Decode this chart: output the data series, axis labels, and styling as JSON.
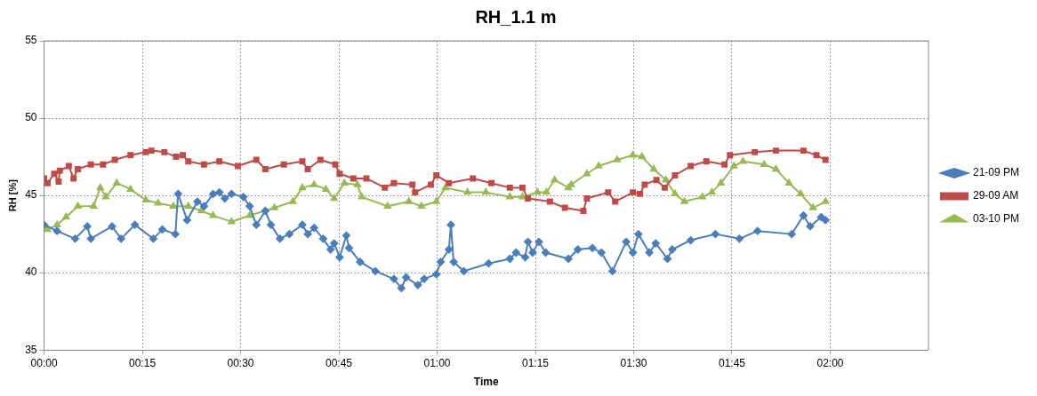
{
  "chart_data": {
    "type": "line",
    "title": "RH_1.1 m",
    "xlabel": "Time",
    "ylabel": "RH [%]",
    "xlim": [
      0,
      2.25
    ],
    "xticks": [
      {
        "value": 0,
        "label": "00:00"
      },
      {
        "value": 0.25,
        "label": "00:15"
      },
      {
        "value": 0.5,
        "label": "00:30"
      },
      {
        "value": 0.75,
        "label": "00:45"
      },
      {
        "value": 1,
        "label": "01:00"
      },
      {
        "value": 1.25,
        "label": "01:15"
      },
      {
        "value": 1.5,
        "label": "01:30"
      },
      {
        "value": 1.75,
        "label": "01:45"
      },
      {
        "value": 2,
        "label": "02:00"
      }
    ],
    "ylim": [
      35,
      55
    ],
    "yticks": [
      35,
      40,
      45,
      50,
      55
    ],
    "grid": true,
    "legend": "right",
    "line_style": "solid",
    "series": [
      {
        "name": "21-09 PM",
        "color": "#4a7ebb",
        "marker": "diamond",
        "x": [
          0,
          0.033,
          0.079,
          0.11,
          0.119,
          0.173,
          0.196,
          0.231,
          0.278,
          0.301,
          0.334,
          0.341,
          0.364,
          0.39,
          0.407,
          0.43,
          0.446,
          0.46,
          0.477,
          0.507,
          0.523,
          0.54,
          0.563,
          0.577,
          0.6,
          0.624,
          0.657,
          0.671,
          0.687,
          0.71,
          0.729,
          0.738,
          0.752,
          0.769,
          0.776,
          0.804,
          0.843,
          0.89,
          0.909,
          0.921,
          0.951,
          0.967,
          0.998,
          1.009,
          1.03,
          1.035,
          1.042,
          1.068,
          1.131,
          1.185,
          1.201,
          1.224,
          1.231,
          1.243,
          1.259,
          1.276,
          1.334,
          1.358,
          1.395,
          1.418,
          1.446,
          1.481,
          1.498,
          1.512,
          1.54,
          1.556,
          1.586,
          1.598,
          1.645,
          1.708,
          1.769,
          1.815,
          1.902,
          1.932,
          1.949,
          1.977,
          1.988
        ],
        "values": [
          43.1,
          42.7,
          42.2,
          43.0,
          42.2,
          43.0,
          42.2,
          43.1,
          42.2,
          42.8,
          42.5,
          45.1,
          43.4,
          44.6,
          44.3,
          45.1,
          45.2,
          44.8,
          45.1,
          44.9,
          44.3,
          43.1,
          44.0,
          43.1,
          42.2,
          42.5,
          43.1,
          42.5,
          42.9,
          42.2,
          41.5,
          41.9,
          41.0,
          42.4,
          41.6,
          40.7,
          40.1,
          39.6,
          39.0,
          39.7,
          39.2,
          39.6,
          39.9,
          40.7,
          41.5,
          43.1,
          40.7,
          40.1,
          40.6,
          40.9,
          41.3,
          41.0,
          42.0,
          41.3,
          42.0,
          41.3,
          40.9,
          41.5,
          41.6,
          41.3,
          40.1,
          42.0,
          41.3,
          42.5,
          41.3,
          41.9,
          40.9,
          41.5,
          42.1,
          42.5,
          42.2,
          42.7,
          42.5,
          43.7,
          43.0,
          43.6,
          43.4
        ]
      },
      {
        "name": "29-09 AM",
        "color": "#be4b48",
        "marker": "square",
        "x": [
          0,
          0.009,
          0.026,
          0.037,
          0.04,
          0.063,
          0.075,
          0.086,
          0.119,
          0.15,
          0.18,
          0.22,
          0.259,
          0.273,
          0.306,
          0.336,
          0.353,
          0.367,
          0.407,
          0.446,
          0.493,
          0.54,
          0.563,
          0.61,
          0.657,
          0.671,
          0.703,
          0.741,
          0.752,
          0.787,
          0.82,
          0.867,
          0.89,
          0.937,
          0.944,
          0.984,
          0.998,
          1.03,
          1.091,
          1.138,
          1.185,
          1.217,
          1.231,
          1.287,
          1.325,
          1.372,
          1.381,
          1.435,
          1.453,
          1.498,
          1.516,
          1.528,
          1.558,
          1.579,
          1.605,
          1.645,
          1.685,
          1.731,
          1.745,
          1.808,
          1.862,
          1.932,
          1.965,
          1.988
        ],
        "values": [
          46.1,
          45.8,
          46.4,
          45.9,
          46.6,
          46.9,
          46.1,
          46.7,
          47.0,
          47.0,
          47.3,
          47.6,
          47.8,
          47.9,
          47.8,
          47.5,
          47.6,
          47.2,
          47.0,
          47.2,
          46.9,
          47.3,
          46.7,
          47.0,
          47.2,
          46.7,
          47.3,
          47.0,
          46.4,
          46.1,
          46.1,
          45.5,
          45.8,
          45.7,
          45.2,
          45.7,
          46.3,
          45.8,
          46.1,
          45.8,
          45.5,
          45.5,
          44.8,
          44.6,
          44.2,
          44.0,
          44.8,
          45.2,
          44.6,
          45.2,
          45.1,
          45.7,
          46.0,
          45.5,
          46.3,
          46.9,
          47.2,
          47.0,
          47.6,
          47.8,
          47.9,
          47.9,
          47.6,
          47.3
        ]
      },
      {
        "name": "03-10 PM",
        "color": "#98b954",
        "marker": "triangle",
        "x": [
          0,
          0.009,
          0.033,
          0.056,
          0.086,
          0.126,
          0.143,
          0.157,
          0.185,
          0.22,
          0.259,
          0.29,
          0.329,
          0.367,
          0.4,
          0.43,
          0.477,
          0.523,
          0.586,
          0.633,
          0.657,
          0.687,
          0.717,
          0.738,
          0.764,
          0.797,
          0.808,
          0.874,
          0.928,
          0.96,
          0.998,
          1.021,
          1.077,
          1.124,
          1.185,
          1.217,
          1.255,
          1.278,
          1.299,
          1.334,
          1.341,
          1.381,
          1.411,
          1.458,
          1.498,
          1.521,
          1.551,
          1.582,
          1.605,
          1.629,
          1.675,
          1.699,
          1.722,
          1.755,
          1.778,
          1.832,
          1.862,
          1.895,
          1.925,
          1.956,
          1.988
        ],
        "values": [
          43.0,
          42.8,
          43.1,
          43.6,
          44.3,
          44.3,
          45.5,
          44.9,
          45.8,
          45.4,
          44.7,
          44.5,
          44.3,
          44.3,
          44.0,
          43.7,
          43.3,
          43.7,
          44.2,
          44.6,
          45.5,
          45.7,
          45.4,
          44.8,
          45.8,
          45.7,
          44.9,
          44.3,
          44.6,
          44.3,
          44.6,
          45.5,
          45.2,
          45.2,
          44.9,
          44.9,
          45.2,
          45.2,
          46.0,
          45.5,
          45.7,
          46.4,
          46.9,
          47.3,
          47.6,
          47.5,
          46.7,
          46.0,
          45.1,
          44.6,
          44.9,
          45.2,
          45.8,
          46.9,
          47.2,
          47.0,
          46.7,
          45.8,
          45.1,
          44.2,
          44.6
        ]
      }
    ]
  }
}
